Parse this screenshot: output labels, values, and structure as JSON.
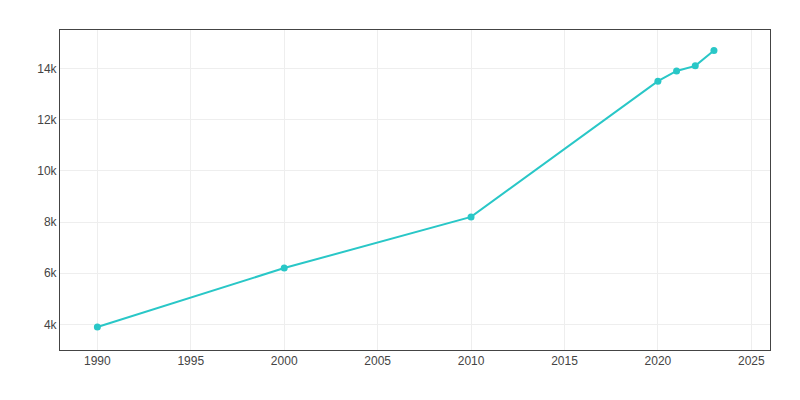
{
  "chart_data": {
    "type": "line",
    "x": [
      1990,
      2000,
      2010,
      2020,
      2021,
      2022,
      2023
    ],
    "values": [
      3900,
      6200,
      8200,
      13500,
      13900,
      14100,
      14700
    ],
    "color": "#29c7c7",
    "marker": "circle",
    "xlim": [
      1988,
      2026
    ],
    "ylim": [
      3000,
      15500
    ],
    "xticks": [
      1990,
      1995,
      2000,
      2005,
      2010,
      2015,
      2020,
      2025
    ],
    "yticks": [
      {
        "value": 4000,
        "label": "4k"
      },
      {
        "value": 6000,
        "label": "6k"
      },
      {
        "value": 8000,
        "label": "8k"
      },
      {
        "value": 10000,
        "label": "10k"
      },
      {
        "value": 12000,
        "label": "12k"
      },
      {
        "value": 14000,
        "label": "14k"
      }
    ],
    "grid": true
  }
}
